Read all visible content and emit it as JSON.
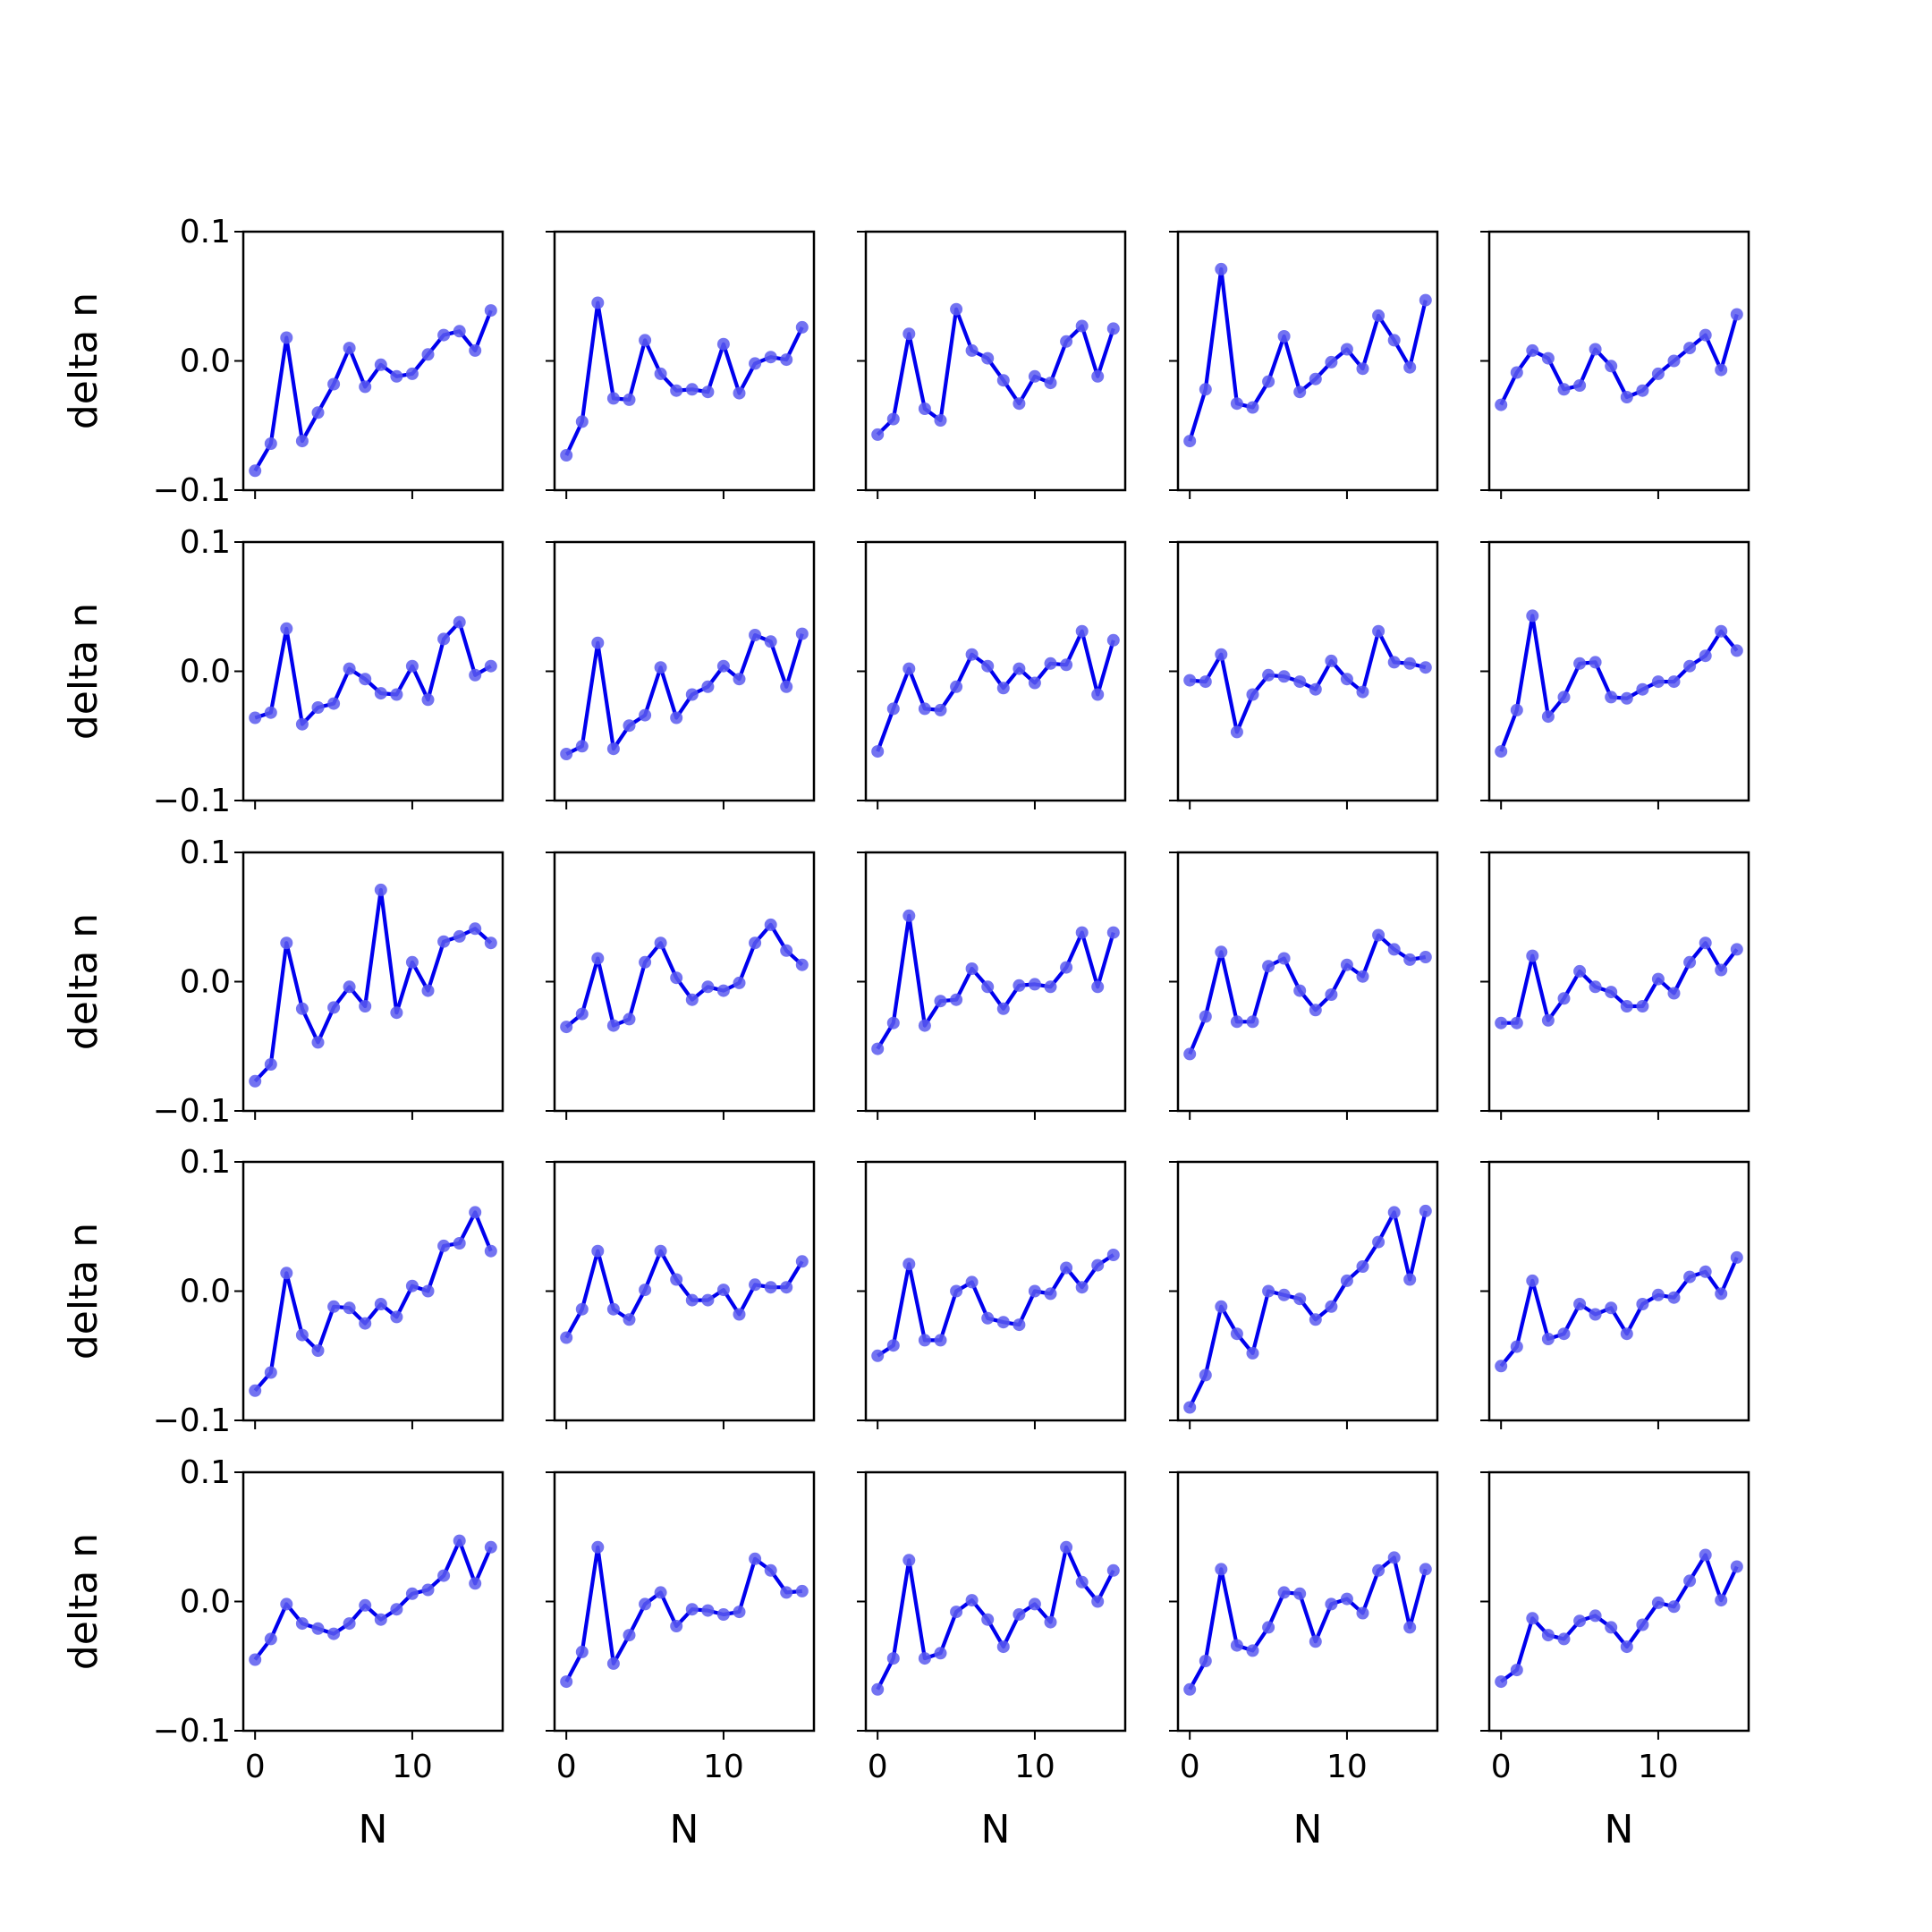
{
  "chart_data": {
    "type": "line",
    "layout": "5x5 grid of subplots, shared axes",
    "xlabel": "N",
    "ylabel": "delta n",
    "ylim": [
      -0.1,
      0.1
    ],
    "yticks": [
      -0.1,
      0.0,
      0.1
    ],
    "ytick_labels": [
      "−0.1",
      "0.0",
      "0.1"
    ],
    "xlim": [
      -0.75,
      15.75
    ],
    "xticks": [
      0,
      10
    ],
    "xtick_labels": [
      "0",
      "10"
    ],
    "x": [
      0,
      1,
      2,
      3,
      4,
      5,
      6,
      7,
      8,
      9,
      10,
      11,
      12,
      13,
      14,
      15
    ],
    "line_color": "#0000ee",
    "marker_color": "#5a5aee",
    "grid": false,
    "panels": [
      [
        {
          "values": [
            -0.085,
            -0.064,
            0.018,
            -0.062,
            -0.04,
            -0.018,
            0.01,
            -0.02,
            -0.003,
            -0.012,
            -0.01,
            0.005,
            0.02,
            0.023,
            0.008,
            0.039
          ]
        },
        {
          "values": [
            -0.073,
            -0.047,
            0.045,
            -0.029,
            -0.03,
            0.016,
            -0.01,
            -0.023,
            -0.022,
            -0.024,
            0.013,
            -0.025,
            -0.002,
            0.003,
            0.001,
            0.026
          ]
        },
        {
          "values": [
            -0.057,
            -0.045,
            0.021,
            -0.037,
            -0.046,
            0.04,
            0.008,
            0.002,
            -0.015,
            -0.033,
            -0.012,
            -0.017,
            0.015,
            0.027,
            -0.012,
            0.025
          ]
        },
        {
          "values": [
            -0.062,
            -0.022,
            0.071,
            -0.033,
            -0.036,
            -0.016,
            0.019,
            -0.024,
            -0.014,
            -0.001,
            0.009,
            -0.006,
            0.035,
            0.016,
            -0.005,
            0.047
          ]
        },
        {
          "values": [
            -0.034,
            -0.009,
            0.008,
            0.002,
            -0.022,
            -0.019,
            0.009,
            -0.004,
            -0.028,
            -0.023,
            -0.01,
            0.0,
            0.01,
            0.02,
            -0.007,
            0.036
          ]
        }
      ],
      [
        {
          "values": [
            -0.036,
            -0.032,
            0.033,
            -0.041,
            -0.028,
            -0.025,
            0.002,
            -0.006,
            -0.017,
            -0.018,
            0.004,
            -0.022,
            0.025,
            0.038,
            -0.003,
            0.004
          ]
        },
        {
          "values": [
            -0.064,
            -0.058,
            0.022,
            -0.06,
            -0.042,
            -0.034,
            0.003,
            -0.036,
            -0.018,
            -0.012,
            0.004,
            -0.006,
            0.028,
            0.023,
            -0.012,
            0.029
          ]
        },
        {
          "values": [
            -0.062,
            -0.029,
            0.002,
            -0.029,
            -0.03,
            -0.012,
            0.013,
            0.004,
            -0.013,
            0.002,
            -0.009,
            0.006,
            0.005,
            0.031,
            -0.018,
            0.024
          ]
        },
        {
          "values": [
            -0.007,
            -0.008,
            0.013,
            -0.047,
            -0.018,
            -0.003,
            -0.004,
            -0.008,
            -0.014,
            0.008,
            -0.006,
            -0.016,
            0.031,
            0.007,
            0.006,
            0.003
          ]
        },
        {
          "values": [
            -0.062,
            -0.03,
            0.043,
            -0.035,
            -0.02,
            0.006,
            0.007,
            -0.02,
            -0.021,
            -0.014,
            -0.008,
            -0.008,
            0.004,
            0.012,
            0.031,
            0.016
          ]
        }
      ],
      [
        {
          "values": [
            -0.077,
            -0.064,
            0.03,
            -0.021,
            -0.047,
            -0.02,
            -0.004,
            -0.019,
            0.071,
            -0.024,
            0.015,
            -0.007,
            0.031,
            0.035,
            0.041,
            0.03
          ]
        },
        {
          "values": [
            -0.035,
            -0.025,
            0.018,
            -0.034,
            -0.029,
            0.015,
            0.03,
            0.003,
            -0.014,
            -0.004,
            -0.007,
            -0.001,
            0.03,
            0.044,
            0.024,
            0.013
          ]
        },
        {
          "values": [
            -0.052,
            -0.032,
            0.051,
            -0.034,
            -0.015,
            -0.014,
            0.01,
            -0.004,
            -0.021,
            -0.003,
            -0.002,
            -0.004,
            0.011,
            0.038,
            -0.004,
            0.038
          ]
        },
        {
          "values": [
            -0.056,
            -0.027,
            0.023,
            -0.031,
            -0.031,
            0.012,
            0.018,
            -0.007,
            -0.022,
            -0.01,
            0.013,
            0.004,
            0.036,
            0.025,
            0.017,
            0.019
          ]
        },
        {
          "values": [
            -0.032,
            -0.032,
            0.02,
            -0.03,
            -0.013,
            0.008,
            -0.004,
            -0.008,
            -0.019,
            -0.019,
            0.002,
            -0.009,
            0.015,
            0.03,
            0.009,
            0.025
          ]
        }
      ],
      [
        {
          "values": [
            -0.077,
            -0.063,
            0.014,
            -0.034,
            -0.046,
            -0.012,
            -0.013,
            -0.025,
            -0.01,
            -0.02,
            0.004,
            0.0,
            0.035,
            0.037,
            0.061,
            0.031
          ]
        },
        {
          "values": [
            -0.036,
            -0.014,
            0.031,
            -0.014,
            -0.022,
            0.001,
            0.031,
            0.009,
            -0.007,
            -0.007,
            0.001,
            -0.018,
            0.005,
            0.003,
            0.003,
            0.023
          ]
        },
        {
          "values": [
            -0.05,
            -0.042,
            0.021,
            -0.038,
            -0.038,
            0.0,
            0.007,
            -0.021,
            -0.024,
            -0.026,
            0.0,
            -0.002,
            0.018,
            0.003,
            0.02,
            0.028
          ]
        },
        {
          "values": [
            -0.09,
            -0.065,
            -0.012,
            -0.033,
            -0.048,
            0.0,
            -0.003,
            -0.006,
            -0.022,
            -0.012,
            0.008,
            0.019,
            0.038,
            0.061,
            0.009,
            0.062
          ]
        },
        {
          "values": [
            -0.058,
            -0.043,
            0.008,
            -0.037,
            -0.033,
            -0.01,
            -0.018,
            -0.013,
            -0.033,
            -0.01,
            -0.003,
            -0.005,
            0.011,
            0.015,
            -0.002,
            0.026
          ]
        }
      ],
      [
        {
          "values": [
            -0.045,
            -0.029,
            -0.002,
            -0.017,
            -0.021,
            -0.025,
            -0.017,
            -0.003,
            -0.014,
            -0.006,
            0.006,
            0.009,
            0.02,
            0.047,
            0.014,
            0.042
          ]
        },
        {
          "values": [
            -0.062,
            -0.039,
            0.042,
            -0.048,
            -0.026,
            -0.002,
            0.007,
            -0.019,
            -0.006,
            -0.007,
            -0.01,
            -0.008,
            0.033,
            0.024,
            0.007,
            0.008
          ]
        },
        {
          "values": [
            -0.068,
            -0.044,
            0.032,
            -0.044,
            -0.04,
            -0.008,
            0.001,
            -0.014,
            -0.035,
            -0.01,
            -0.002,
            -0.016,
            0.042,
            0.015,
            0.0,
            0.024
          ]
        },
        {
          "values": [
            -0.068,
            -0.046,
            0.025,
            -0.034,
            -0.038,
            -0.02,
            0.007,
            0.006,
            -0.031,
            -0.002,
            0.002,
            -0.009,
            0.024,
            0.034,
            -0.02,
            0.025
          ]
        },
        {
          "values": [
            -0.062,
            -0.053,
            -0.013,
            -0.026,
            -0.029,
            -0.015,
            -0.011,
            -0.02,
            -0.035,
            -0.018,
            -0.001,
            -0.004,
            0.016,
            0.036,
            0.001,
            0.027
          ]
        }
      ]
    ]
  }
}
